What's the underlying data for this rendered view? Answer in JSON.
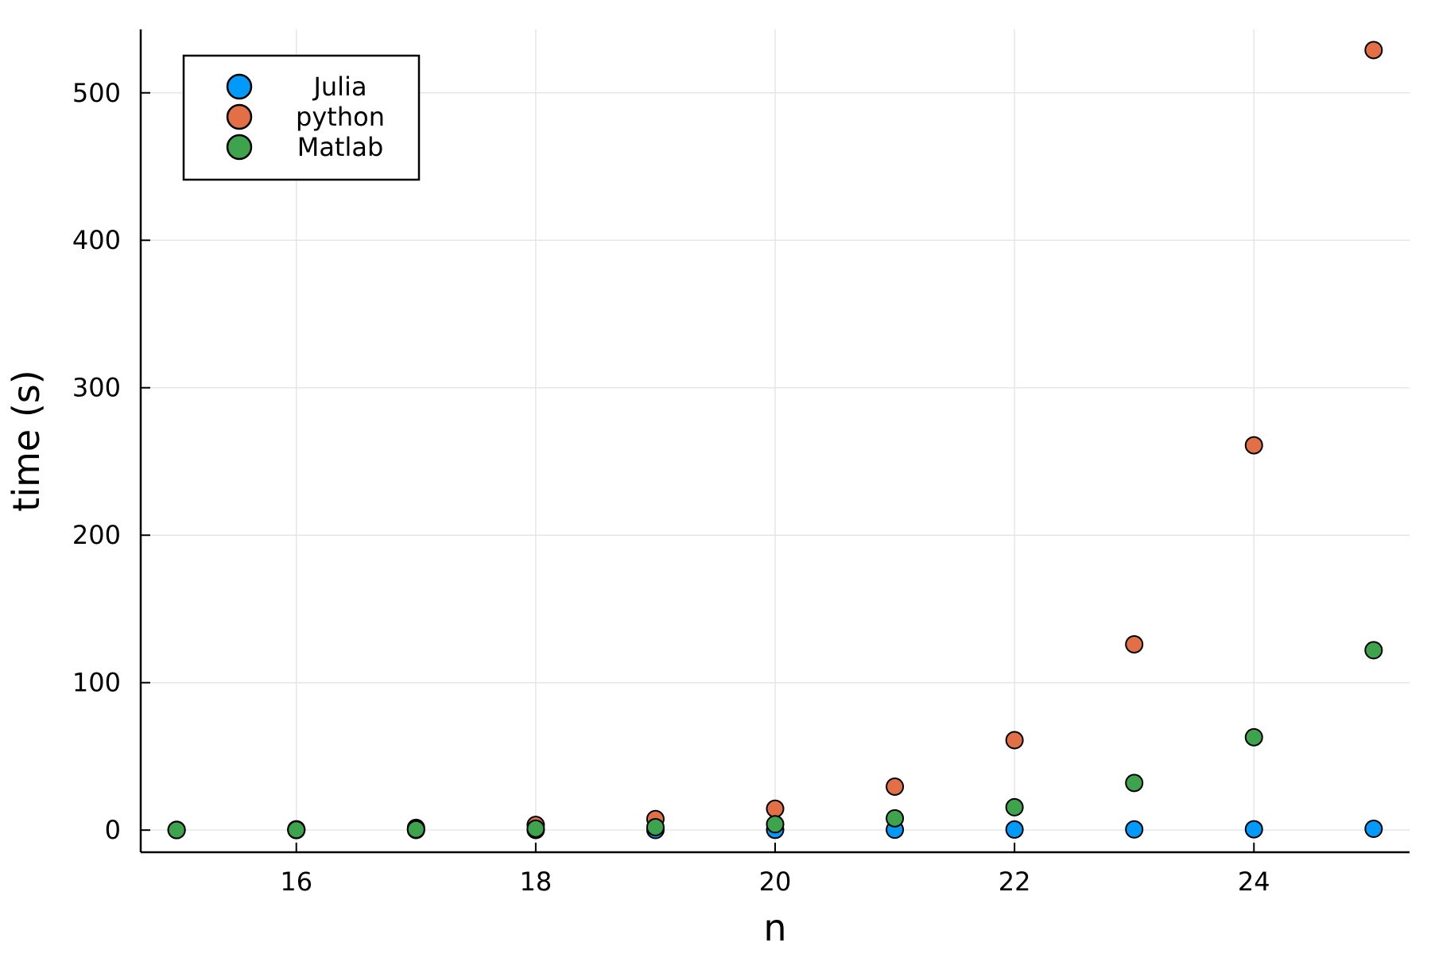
{
  "chart_data": {
    "type": "scatter",
    "title": "",
    "xlabel": "n",
    "ylabel": "time (s)",
    "xlim": [
      14.7,
      25.3
    ],
    "ylim": [
      -15,
      543
    ],
    "xticks": [
      16,
      18,
      20,
      22,
      24
    ],
    "yticks": [
      0,
      100,
      200,
      300,
      400,
      500
    ],
    "grid": true,
    "legend_position": "top-left",
    "x": [
      15,
      16,
      17,
      18,
      19,
      20,
      21,
      22,
      23,
      24,
      25
    ],
    "series": [
      {
        "name": "Julia",
        "color": "#009AFA",
        "values": [
          0.0,
          0.0,
          0.1,
          0.1,
          0.1,
          0.2,
          0.3,
          0.4,
          0.5,
          0.6,
          0.9
        ]
      },
      {
        "name": "python",
        "color": "#E26F46",
        "values": [
          0.2,
          0.6,
          1.5,
          3.5,
          7.5,
          14.5,
          29.5,
          61,
          126,
          261,
          529
        ]
      },
      {
        "name": "Matlab",
        "color": "#3DA44D",
        "values": [
          0.1,
          0.2,
          0.5,
          1.0,
          2.0,
          4.0,
          8.0,
          15.5,
          32,
          63,
          122
        ]
      }
    ]
  }
}
